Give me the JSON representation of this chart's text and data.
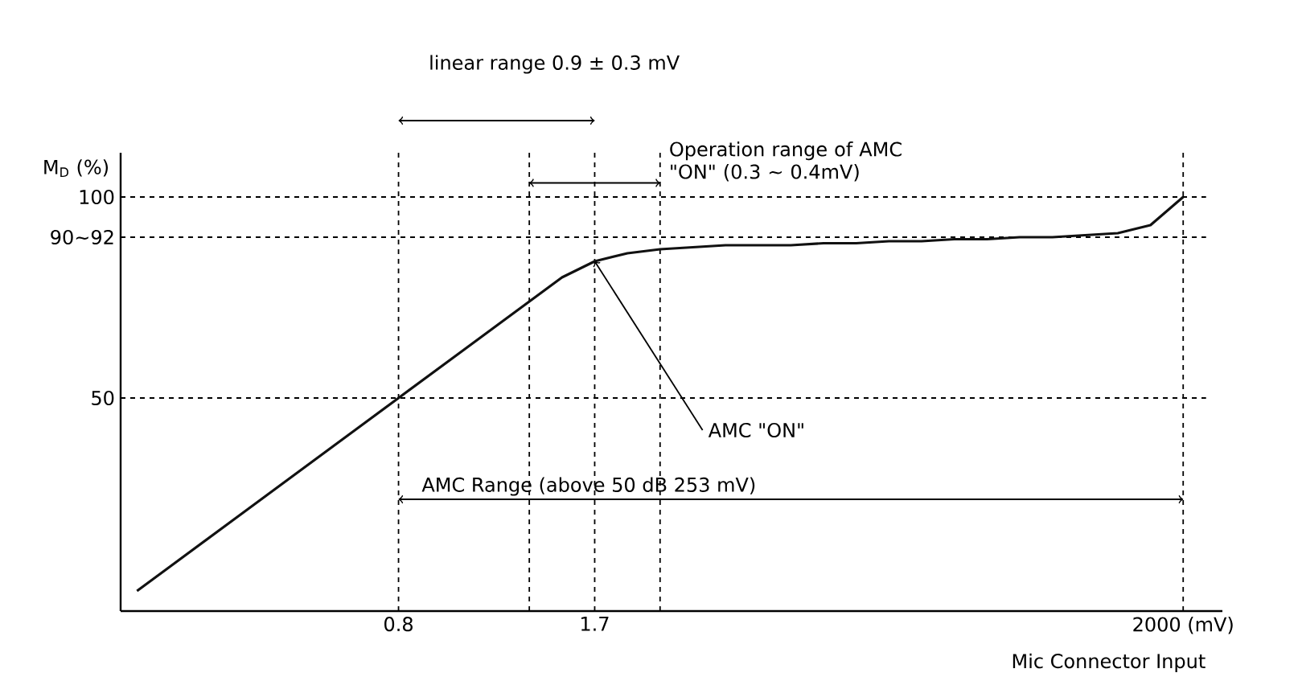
{
  "chart_data": {
    "type": "line",
    "ylabel": "M$_{D}$ (%)",
    "xlabel": "Mic Connector Input",
    "categories": [
      null,
      null,
      null,
      null,
      null,
      null,
      null,
      null,
      "0.8",
      null,
      null,
      null,
      null,
      null,
      "1.7",
      null,
      null,
      null,
      null,
      null,
      null,
      null,
      null,
      null,
      null,
      null,
      null,
      null,
      null,
      null,
      null,
      null,
      "2000 (mV)"
    ],
    "values": [
      2,
      8,
      14,
      20,
      26,
      32,
      38,
      44,
      50,
      56,
      62,
      68,
      74,
      80,
      84,
      86,
      87,
      87.5,
      88,
      88,
      88,
      88.5,
      88.5,
      89,
      89,
      89.5,
      89.5,
      90,
      90,
      90.5,
      91,
      93,
      100
    ],
    "color": "#111111",
    "line_style": "solid",
    "marker": "none",
    "grid": "x",
    "ylim": [
      -3,
      111
    ],
    "yticks": [
      50,
      {
        "value": 90,
        "label": "90~92"
      },
      100
    ],
    "ref_lines": [
      {
        "axis": "y",
        "value": 50,
        "line_style": "dashed"
      },
      {
        "axis": "y",
        "value": 90,
        "line_style": "dashed"
      },
      {
        "axis": "y",
        "value": 100,
        "line_style": "dashed"
      }
    ],
    "annotations": [
      "linear range 0.9 ± 0.3 mV",
      "Operation range of AMC \"ON\" (0.3 ~ 0.4mV)",
      {
        "text": "AMC \"ON\"",
        "x": "1.7",
        "y": 84
      },
      "AMC Range (above 50 dB 253 mV)"
    ]
  }
}
